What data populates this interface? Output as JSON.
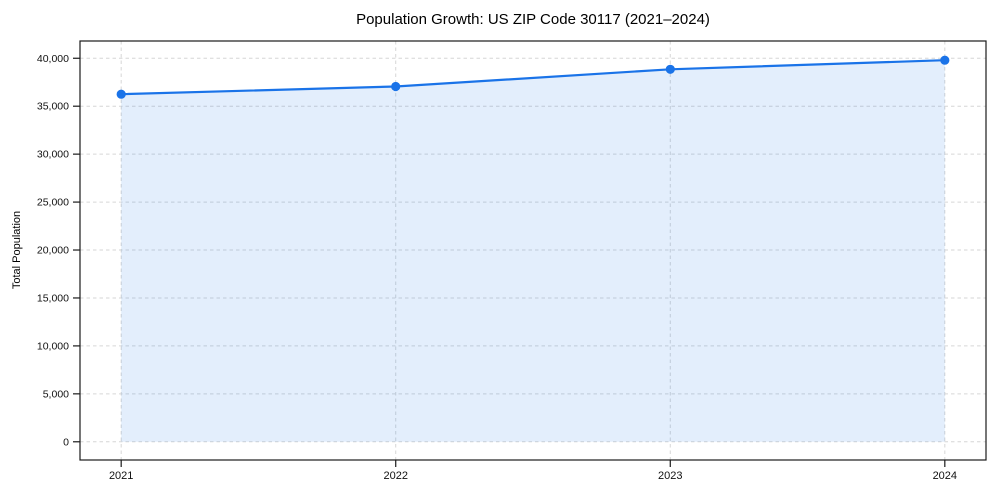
{
  "chart_data": {
    "type": "area",
    "title": "Population Growth: US ZIP Code 30117 (2021–2024)",
    "xlabel": "",
    "ylabel": "Total Population",
    "categories": [
      2021,
      2022,
      2023,
      2024
    ],
    "x_tick_labels": [
      "2021",
      "2022",
      "2023",
      "2024"
    ],
    "series": [
      {
        "name": "Total Population",
        "values": [
          36250,
          37050,
          38850,
          39800
        ]
      }
    ],
    "yticks": [
      0,
      5000,
      10000,
      15000,
      20000,
      25000,
      30000,
      35000,
      40000
    ],
    "y_tick_labels": [
      "0",
      "5,000",
      "10,000",
      "15,000",
      "20,000",
      "25,000",
      "30,000",
      "35,000",
      "40,000"
    ],
    "xlim": [
      2020.85,
      2024.15
    ],
    "ylim": [
      -1900,
      41800
    ],
    "grid": true,
    "grid_style": "dashed",
    "legend": "none",
    "colors": {
      "line": "#1a73e8",
      "marker": "#1a73e8",
      "fill": "rgba(26, 115, 232, 0.12)",
      "grid": "#d6d6d6",
      "spine": "#1a1a1a",
      "tick_text": "#111111",
      "background": "#ffffff"
    }
  }
}
